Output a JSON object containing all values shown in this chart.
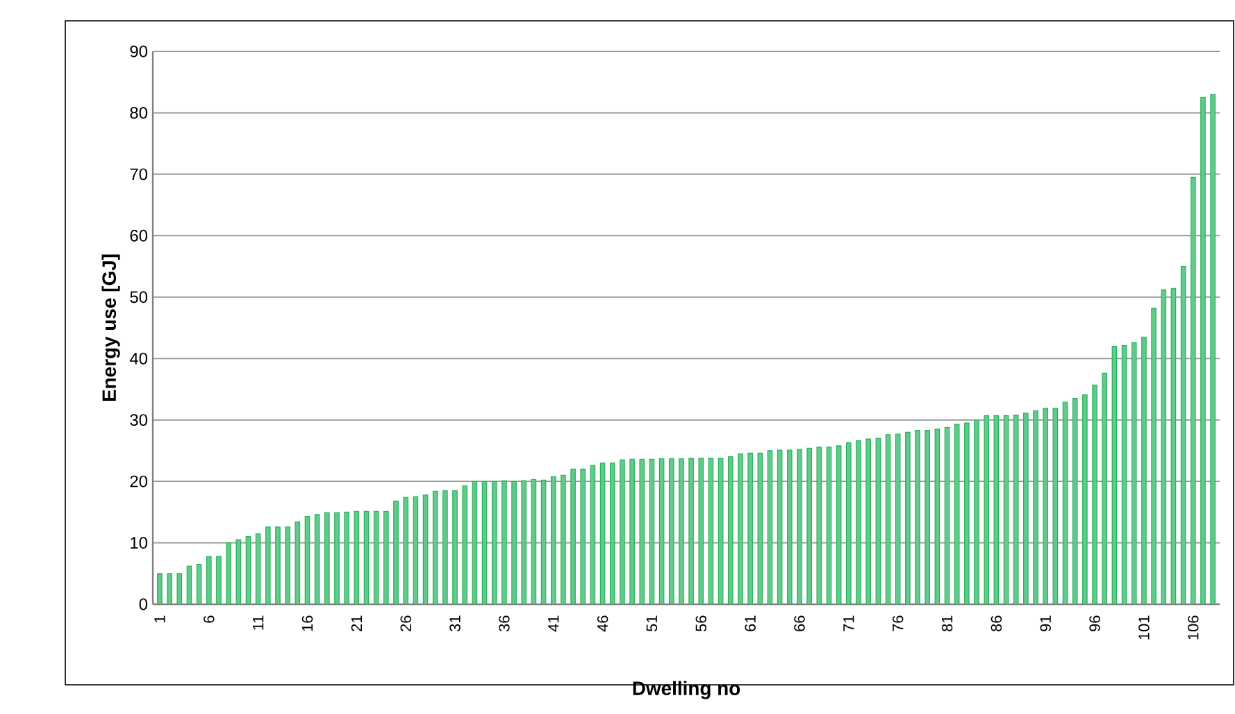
{
  "chart_data": {
    "type": "bar",
    "xlabel": "Dwelling no",
    "ylabel": "Energy use [GJ]",
    "categories": [
      "1",
      null,
      null,
      null,
      null,
      "6",
      null,
      null,
      null,
      null,
      "11",
      null,
      null,
      null,
      null,
      "16",
      null,
      null,
      null,
      null,
      "21",
      null,
      null,
      null,
      null,
      "26",
      null,
      null,
      null,
      null,
      "31",
      null,
      null,
      null,
      null,
      "36",
      null,
      null,
      null,
      null,
      "41",
      null,
      null,
      null,
      null,
      "46",
      null,
      null,
      null,
      null,
      "51",
      null,
      null,
      null,
      null,
      "56",
      null,
      null,
      null,
      null,
      "61",
      null,
      null,
      null,
      null,
      "66",
      null,
      null,
      null,
      null,
      "71",
      null,
      null,
      null,
      null,
      "76",
      null,
      null,
      null,
      null,
      "81",
      null,
      null,
      null,
      null,
      "86",
      null,
      null,
      null,
      null,
      "91",
      null,
      null,
      null,
      null,
      "96",
      null,
      null,
      null,
      null,
      "101",
      null,
      null,
      null,
      null,
      "106",
      null,
      null
    ],
    "values": [
      5.0,
      5.0,
      5.0,
      6.2,
      6.5,
      7.8,
      7.8,
      10.0,
      10.5,
      11.0,
      11.5,
      12.6,
      12.6,
      12.6,
      13.4,
      14.3,
      14.6,
      14.9,
      14.9,
      15.0,
      15.1,
      15.1,
      15.1,
      15.1,
      16.8,
      17.4,
      17.5,
      17.8,
      18.4,
      18.5,
      18.5,
      19.3,
      20.0,
      20.0,
      20.0,
      20.1,
      20.0,
      20.1,
      20.3,
      20.2,
      20.8,
      21.0,
      22.0,
      22.0,
      22.6,
      23.0,
      23.0,
      23.5,
      23.6,
      23.6,
      23.6,
      23.7,
      23.7,
      23.7,
      23.8,
      23.8,
      23.8,
      23.8,
      24.0,
      24.5,
      24.6,
      24.6,
      25.0,
      25.1,
      25.1,
      25.2,
      25.4,
      25.6,
      25.6,
      25.8,
      26.3,
      26.6,
      26.9,
      27.0,
      27.6,
      27.7,
      28.0,
      28.3,
      28.3,
      28.5,
      28.8,
      29.3,
      29.5,
      30.0,
      30.7,
      30.7,
      30.7,
      30.8,
      31.1,
      31.5,
      31.9,
      31.9,
      32.9,
      33.5,
      34.1,
      35.7,
      37.6,
      42.0,
      42.1,
      42.6,
      43.5,
      48.2,
      51.2,
      51.4,
      55.0,
      69.5,
      82.5,
      83.0
    ],
    "color": "#22b35a",
    "ylim": [
      0,
      90
    ],
    "yticks": [
      0,
      10,
      20,
      30,
      40,
      50,
      60,
      70,
      80,
      90
    ],
    "grid": "y"
  }
}
